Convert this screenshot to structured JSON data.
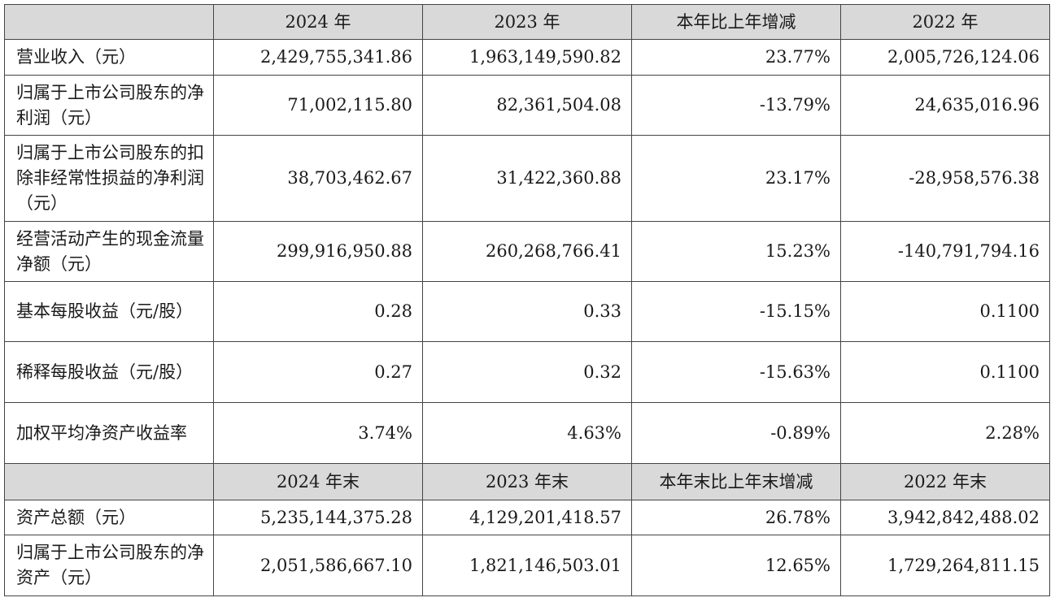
{
  "header1": [
    "2024 年",
    "2023 年",
    "本年比上年增减",
    "2022 年"
  ],
  "rows1": [
    {
      "label": "营业收入（元）",
      "values": [
        "2,429,755,341.86",
        "1,963,149,590.82",
        "23.77%",
        "2,005,726,124.06"
      ]
    },
    {
      "label": "归属于上市公司股东的净利润（元）",
      "values": [
        "71,002,115.80",
        "82,361,504.08",
        "-13.79%",
        "24,635,016.96"
      ]
    },
    {
      "label": "归属于上市公司股东的扣除非经常性损益的净利润（元）",
      "values": [
        "38,703,462.67",
        "31,422,360.88",
        "23.17%",
        "-28,958,576.38"
      ]
    },
    {
      "label": "经营活动产生的现金流量净额（元）",
      "values": [
        "299,916,950.88",
        "260,268,766.41",
        "15.23%",
        "-140,791,794.16"
      ]
    },
    {
      "label": "基本每股收益（元/股）",
      "values": [
        "0.28",
        "0.33",
        "-15.15%",
        "0.1100"
      ]
    },
    {
      "label": "稀释每股收益（元/股）",
      "values": [
        "0.27",
        "0.32",
        "-15.63%",
        "0.1100"
      ]
    },
    {
      "label": "加权平均净资产收益率",
      "values": [
        "3.74%",
        "4.63%",
        "-0.89%",
        "2.28%"
      ]
    }
  ],
  "header2": [
    "2024 年末",
    "2023 年末",
    "本年末比上年末增减",
    "2022 年末"
  ],
  "rows2": [
    {
      "label": "资产总额（元）",
      "values": [
        "5,235,144,375.28",
        "4,129,201,418.57",
        "26.78%",
        "3,942,842,488.02"
      ]
    },
    {
      "label": "归属于上市公司股东的净资产（元）",
      "values": [
        "2,051,586,667.10",
        "1,821,146,503.01",
        "12.65%",
        "1,729,264,811.15"
      ]
    }
  ]
}
